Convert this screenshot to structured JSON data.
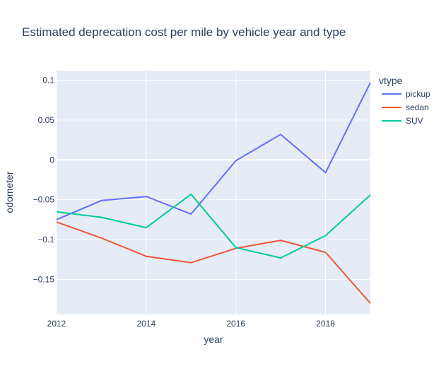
{
  "chart_data": {
    "type": "line",
    "title": "Estimated deprecation cost per mile by vehicle year and type",
    "xlabel": "year",
    "ylabel": "odometer",
    "x": [
      2012,
      2013,
      2014,
      2015,
      2016,
      2017,
      2018,
      2019
    ],
    "xlim": [
      2012,
      2019
    ],
    "ylim": [
      -0.194,
      0.112
    ],
    "x_ticks": [
      2012,
      2014,
      2016,
      2018
    ],
    "x_tick_labels": [
      "2012",
      "2014",
      "2016",
      "2018"
    ],
    "y_ticks": [
      0.1,
      0.05,
      0,
      -0.05,
      -0.1,
      -0.15
    ],
    "y_tick_labels": [
      "0.1",
      "0.05",
      "0",
      "−0.05",
      "−0.1",
      "−0.15"
    ],
    "grid": true,
    "legend": {
      "title": "vtype",
      "position": "top-right"
    },
    "series": [
      {
        "name": "pickup",
        "color": "#636efa",
        "values": [
          -0.075,
          -0.051,
          -0.046,
          -0.068,
          -0.001,
          0.032,
          -0.016,
          0.097
        ]
      },
      {
        "name": "sedan",
        "color": "#ef553b",
        "values": [
          -0.078,
          -0.098,
          -0.121,
          -0.129,
          -0.111,
          -0.101,
          -0.116,
          -0.18
        ]
      },
      {
        "name": "SUV",
        "color": "#00cc96",
        "values": [
          -0.065,
          -0.072,
          -0.085,
          -0.043,
          -0.11,
          -0.123,
          -0.095,
          -0.044
        ]
      }
    ]
  }
}
